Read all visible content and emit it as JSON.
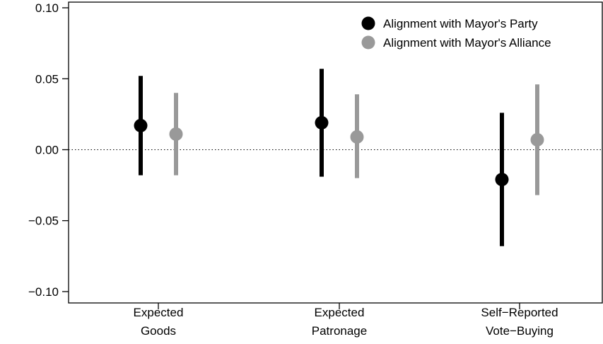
{
  "chart_data": {
    "type": "scatter",
    "subtype": "coefficient-plot-with-intervals",
    "categories": [
      [
        "Expected",
        "Goods"
      ],
      [
        "Expected",
        "Patronage"
      ],
      [
        "Self−Reported",
        "Vote−Buying"
      ]
    ],
    "yticks": [
      "0.10",
      "0.05",
      "0.00",
      "−0.05",
      "−0.10"
    ],
    "ytick_values": [
      0.1,
      0.05,
      0.0,
      -0.05,
      -0.1
    ],
    "ylim": [
      -0.108,
      0.104
    ],
    "reference_line": 0.0,
    "legend_position": "top-right",
    "series": [
      {
        "name": "Alignment with Mayor's Party",
        "color": "#000000",
        "estimates": [
          0.017,
          0.019,
          -0.021
        ],
        "lower": [
          -0.018,
          -0.019,
          -0.068
        ],
        "upper": [
          0.052,
          0.057,
          0.026
        ]
      },
      {
        "name": "Alignment with Mayor's Alliance",
        "color": "#999999",
        "estimates": [
          0.011,
          0.009,
          0.007
        ],
        "lower": [
          -0.018,
          -0.02,
          -0.032
        ],
        "upper": [
          0.04,
          0.039,
          0.046
        ]
      }
    ]
  }
}
